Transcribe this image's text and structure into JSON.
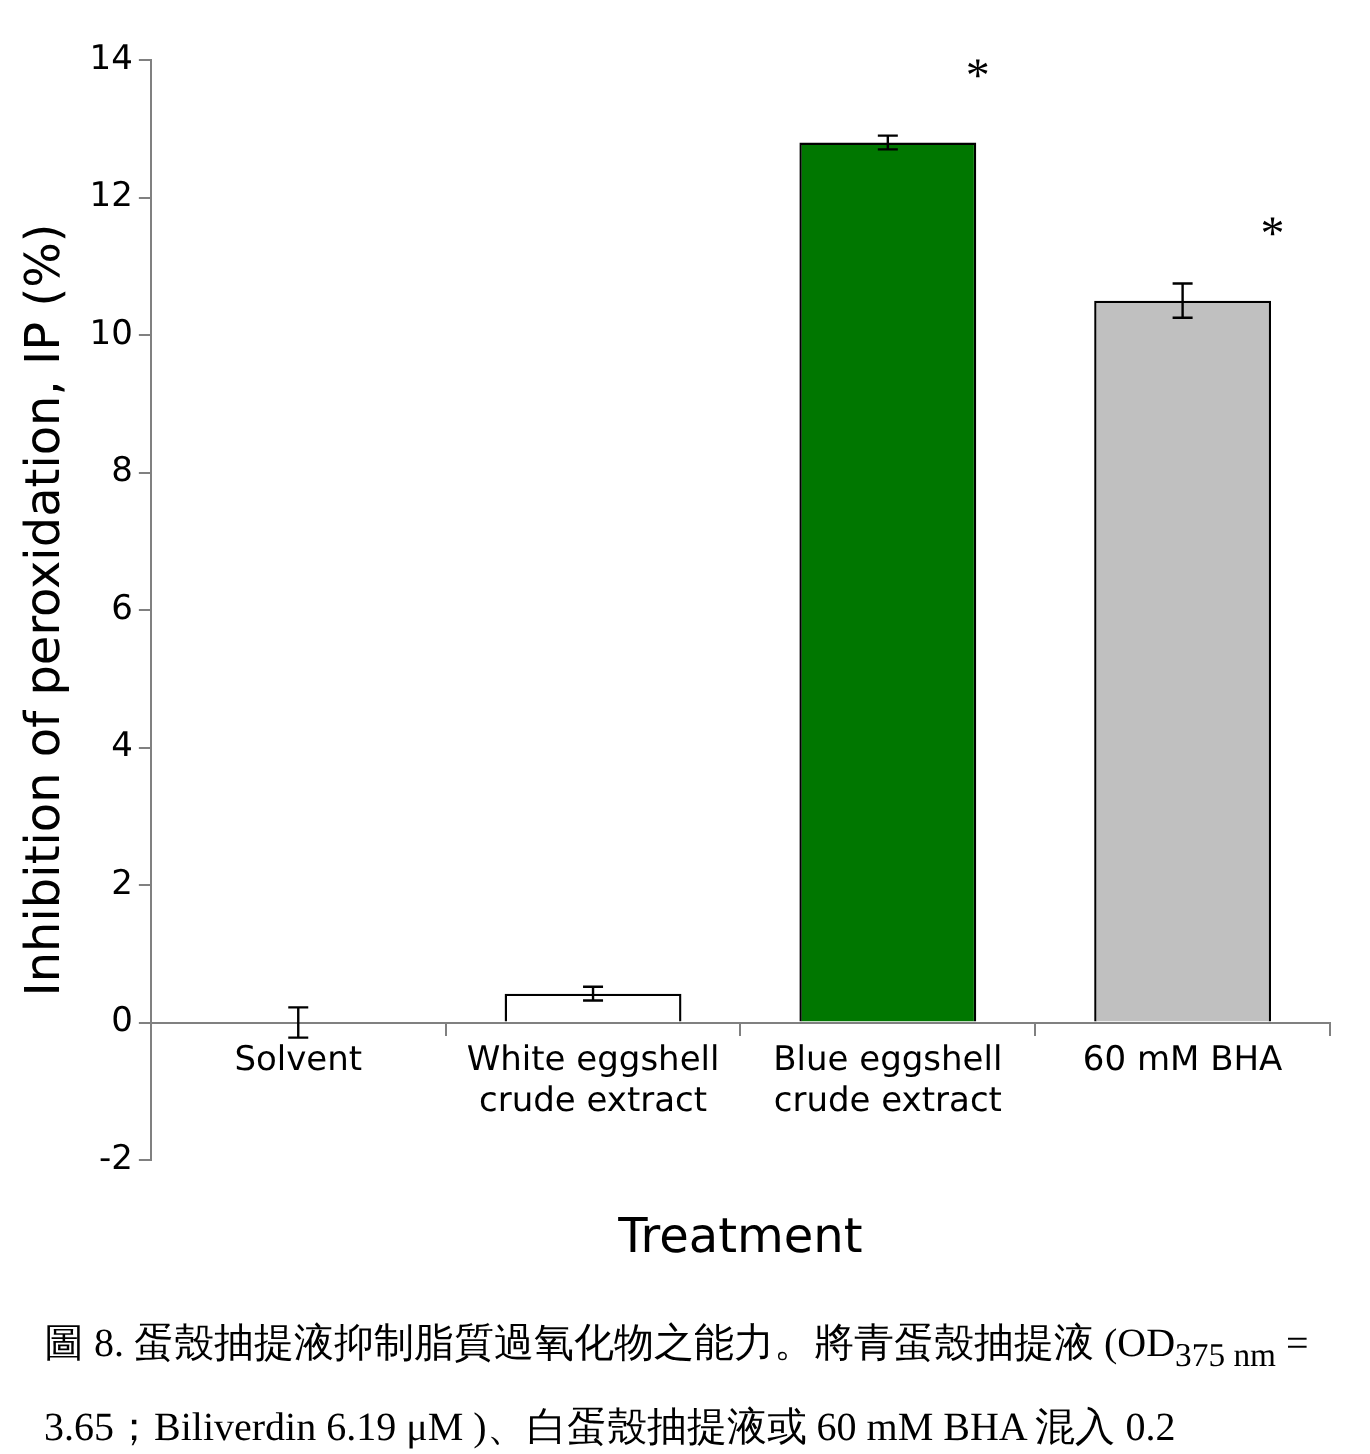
{
  "chart_data": {
    "type": "bar",
    "xlabel": "Treatment",
    "ylabel": "Inhibition of peroxidation, IP (%)",
    "categories": [
      "Solvent",
      "White eggshell crude extract",
      "Blue eggshell crude extract",
      "60 mM BHA"
    ],
    "values": [
      0,
      0.42,
      12.8,
      10.5
    ],
    "errors": [
      0.22,
      0.1,
      0.1,
      0.25
    ],
    "colors": [
      "#ffffff",
      "#ffffff",
      "#007700",
      "#c0c0c0"
    ],
    "ylim": [
      -2,
      14
    ],
    "yticks": [
      -2,
      0,
      2,
      4,
      6,
      8,
      10,
      12,
      14
    ],
    "grid": false,
    "legend": false,
    "annotations": [
      {
        "text": "*",
        "x": "Blue eggshell crude extract",
        "y": 12.8
      },
      {
        "text": "*",
        "x": "60 mM BHA",
        "y": 10.5
      },
      "圖 8. 蛋殼抽提液抑制脂質過氧化物之能力。將青蛋殼抽提液 (OD$_{375 nm}$ = 3.65；Biliverdin 6.19 μM )、白蛋殼抽提液或 60 mM BHA 混入 0.2"
    ]
  }
}
